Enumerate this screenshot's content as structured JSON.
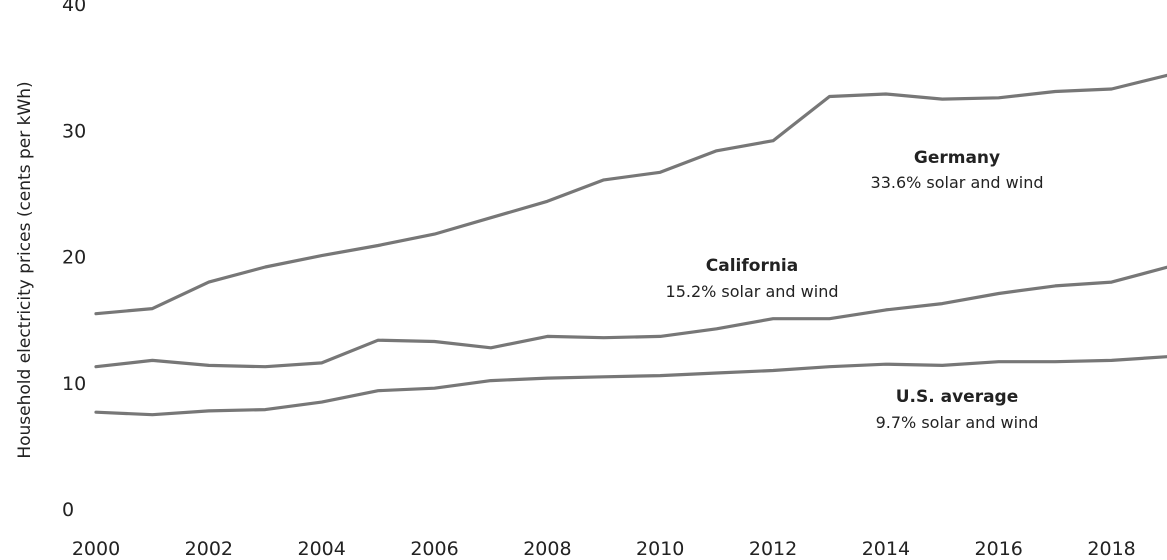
{
  "chart_data": {
    "type": "line",
    "title": "",
    "xlabel": "",
    "ylabel": "Household electricity prices (cents per kWh)",
    "xlim": [
      2000,
      2019
    ],
    "ylim": [
      0,
      40
    ],
    "x_ticks": [
      "2000",
      "2002",
      "2004",
      "2006",
      "2008",
      "2010",
      "2012",
      "2014",
      "2016",
      "2018"
    ],
    "y_ticks": [
      "0",
      "10",
      "20",
      "30",
      "40"
    ],
    "grid": false,
    "line_color": "#777777",
    "x": [
      2000,
      2001,
      2002,
      2003,
      2004,
      2005,
      2006,
      2007,
      2008,
      2009,
      2010,
      2011,
      2012,
      2013,
      2014,
      2015,
      2016,
      2017,
      2018,
      2019
    ],
    "series": [
      {
        "name": "Germany",
        "note": "33.6% solar and wind",
        "values": [
          16.5,
          16.9,
          19.0,
          20.2,
          21.1,
          21.9,
          22.8,
          24.1,
          25.4,
          27.1,
          27.7,
          29.4,
          30.2,
          33.7,
          33.9,
          33.5,
          33.6,
          34.1,
          34.3,
          35.4
        ]
      },
      {
        "name": "California",
        "note": "15.2% solar and wind",
        "values": [
          12.3,
          12.8,
          12.4,
          12.3,
          12.6,
          14.4,
          14.3,
          13.8,
          14.7,
          14.6,
          14.7,
          15.3,
          16.1,
          16.1,
          16.8,
          17.3,
          18.1,
          18.7,
          19.0,
          20.2
        ]
      },
      {
        "name": "U.S. average",
        "note": "9.7% solar and wind",
        "values": [
          8.7,
          8.5,
          8.8,
          8.9,
          9.5,
          10.4,
          10.6,
          11.2,
          11.4,
          11.5,
          11.6,
          11.8,
          12.0,
          12.3,
          12.5,
          12.4,
          12.7,
          12.7,
          12.8,
          13.1
        ]
      }
    ]
  }
}
